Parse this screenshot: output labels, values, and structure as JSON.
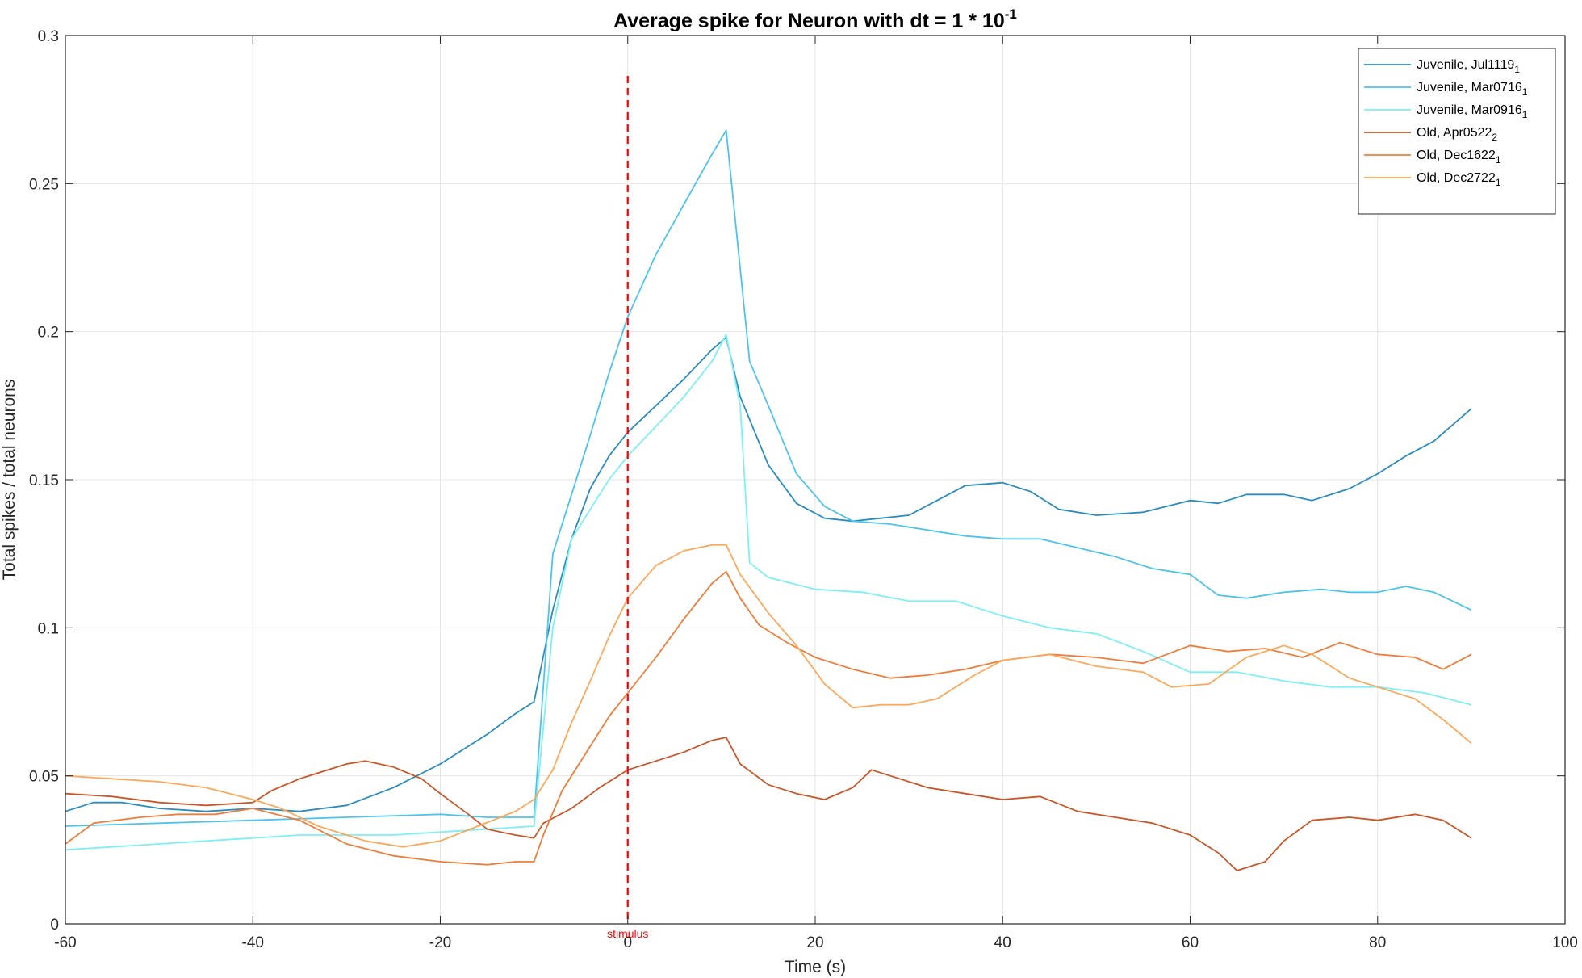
{
  "chart_data": {
    "type": "line",
    "title": "Average spike for Neuron with dt = 1 * 10",
    "title_superscript": "-1",
    "xlabel": "Time (s)",
    "ylabel": "Total spikes / total neurons",
    "xlim": [
      -60,
      100
    ],
    "ylim": [
      0,
      0.3
    ],
    "xticks": [
      -60,
      -40,
      -20,
      0,
      20,
      40,
      60,
      80,
      100
    ],
    "xtick_labels": [
      "-60",
      "-40",
      "-20",
      "0",
      "20",
      "40",
      "60",
      "80",
      "100"
    ],
    "yticks": [
      0,
      0.05,
      0.1,
      0.15,
      0.2,
      0.25,
      0.3
    ],
    "ytick_labels": [
      "0",
      "0.05",
      "0.1",
      "0.15",
      "0.2",
      "0.25",
      "0.3"
    ],
    "grid": true,
    "legend_position": "top-right",
    "stimulus": {
      "x": 0,
      "label": "stimulus",
      "color": "#ff0000"
    },
    "series": [
      {
        "name": "Juvenile, Jul1119",
        "subscript": "1",
        "color": "#2b8cbe",
        "points": [
          [
            -60,
            0.038
          ],
          [
            -57,
            0.041
          ],
          [
            -54,
            0.041
          ],
          [
            -50,
            0.039
          ],
          [
            -45,
            0.038
          ],
          [
            -40,
            0.039
          ],
          [
            -35,
            0.038
          ],
          [
            -30,
            0.04
          ],
          [
            -25,
            0.046
          ],
          [
            -20,
            0.054
          ],
          [
            -15,
            0.064
          ],
          [
            -12,
            0.071
          ],
          [
            -10,
            0.075
          ],
          [
            -8,
            0.106
          ],
          [
            -6,
            0.13
          ],
          [
            -4,
            0.147
          ],
          [
            -2,
            0.158
          ],
          [
            0,
            0.166
          ],
          [
            3,
            0.175
          ],
          [
            6,
            0.184
          ],
          [
            9,
            0.194
          ],
          [
            10.5,
            0.198
          ],
          [
            12,
            0.178
          ],
          [
            15,
            0.155
          ],
          [
            18,
            0.142
          ],
          [
            21,
            0.137
          ],
          [
            24,
            0.136
          ],
          [
            27,
            0.137
          ],
          [
            30,
            0.138
          ],
          [
            33,
            0.143
          ],
          [
            36,
            0.148
          ],
          [
            40,
            0.149
          ],
          [
            43,
            0.146
          ],
          [
            46,
            0.14
          ],
          [
            50,
            0.138
          ],
          [
            55,
            0.139
          ],
          [
            60,
            0.143
          ],
          [
            63,
            0.142
          ],
          [
            66,
            0.145
          ],
          [
            70,
            0.145
          ],
          [
            73,
            0.143
          ],
          [
            77,
            0.147
          ],
          [
            80,
            0.152
          ],
          [
            83,
            0.158
          ],
          [
            86,
            0.163
          ],
          [
            90,
            0.174
          ]
        ]
      },
      {
        "name": "Juvenile, Mar0716",
        "subscript": "1",
        "color": "#4fc3ec",
        "points": [
          [
            -60,
            0.033
          ],
          [
            -50,
            0.034
          ],
          [
            -40,
            0.035
          ],
          [
            -30,
            0.036
          ],
          [
            -20,
            0.037
          ],
          [
            -15,
            0.036
          ],
          [
            -10,
            0.036
          ],
          [
            -8,
            0.125
          ],
          [
            -6,
            0.145
          ],
          [
            -4,
            0.165
          ],
          [
            -2,
            0.186
          ],
          [
            0,
            0.205
          ],
          [
            3,
            0.226
          ],
          [
            6,
            0.243
          ],
          [
            9,
            0.26
          ],
          [
            10.5,
            0.268
          ],
          [
            13,
            0.19
          ],
          [
            15,
            0.175
          ],
          [
            18,
            0.152
          ],
          [
            21,
            0.141
          ],
          [
            24,
            0.136
          ],
          [
            28,
            0.135
          ],
          [
            32,
            0.133
          ],
          [
            36,
            0.131
          ],
          [
            40,
            0.13
          ],
          [
            44,
            0.13
          ],
          [
            48,
            0.127
          ],
          [
            52,
            0.124
          ],
          [
            56,
            0.12
          ],
          [
            60,
            0.118
          ],
          [
            63,
            0.111
          ],
          [
            66,
            0.11
          ],
          [
            70,
            0.112
          ],
          [
            74,
            0.113
          ],
          [
            77,
            0.112
          ],
          [
            80,
            0.112
          ],
          [
            83,
            0.114
          ],
          [
            86,
            0.112
          ],
          [
            90,
            0.106
          ]
        ]
      },
      {
        "name": "Juvenile, Mar0916",
        "subscript": "1",
        "color": "#7eeff2",
        "points": [
          [
            -60,
            0.025
          ],
          [
            -55,
            0.026
          ],
          [
            -50,
            0.027
          ],
          [
            -45,
            0.028
          ],
          [
            -40,
            0.029
          ],
          [
            -35,
            0.03
          ],
          [
            -30,
            0.03
          ],
          [
            -25,
            0.03
          ],
          [
            -20,
            0.031
          ],
          [
            -15,
            0.032
          ],
          [
            -10,
            0.033
          ],
          [
            -8,
            0.1
          ],
          [
            -6,
            0.13
          ],
          [
            -4,
            0.14
          ],
          [
            -2,
            0.15
          ],
          [
            0,
            0.158
          ],
          [
            3,
            0.168
          ],
          [
            6,
            0.178
          ],
          [
            9,
            0.19
          ],
          [
            10.5,
            0.199
          ],
          [
            12,
            0.175
          ],
          [
            13,
            0.122
          ],
          [
            15,
            0.117
          ],
          [
            20,
            0.113
          ],
          [
            25,
            0.112
          ],
          [
            30,
            0.109
          ],
          [
            35,
            0.109
          ],
          [
            40,
            0.104
          ],
          [
            45,
            0.1
          ],
          [
            50,
            0.098
          ],
          [
            55,
            0.092
          ],
          [
            60,
            0.085
          ],
          [
            65,
            0.085
          ],
          [
            70,
            0.082
          ],
          [
            75,
            0.08
          ],
          [
            80,
            0.08
          ],
          [
            85,
            0.078
          ],
          [
            90,
            0.074
          ]
        ]
      },
      {
        "name": "Old, Apr0522",
        "subscript": "2",
        "color": "#c8572a",
        "points": [
          [
            -60,
            0.044
          ],
          [
            -55,
            0.043
          ],
          [
            -50,
            0.041
          ],
          [
            -45,
            0.04
          ],
          [
            -40,
            0.041
          ],
          [
            -38,
            0.045
          ],
          [
            -35,
            0.049
          ],
          [
            -30,
            0.054
          ],
          [
            -28,
            0.055
          ],
          [
            -25,
            0.053
          ],
          [
            -22,
            0.049
          ],
          [
            -20,
            0.044
          ],
          [
            -17,
            0.037
          ],
          [
            -15,
            0.032
          ],
          [
            -12,
            0.03
          ],
          [
            -10,
            0.029
          ],
          [
            -9,
            0.034
          ],
          [
            -6,
            0.039
          ],
          [
            -3,
            0.046
          ],
          [
            0,
            0.052
          ],
          [
            3,
            0.055
          ],
          [
            6,
            0.058
          ],
          [
            9,
            0.062
          ],
          [
            10.5,
            0.063
          ],
          [
            12,
            0.054
          ],
          [
            15,
            0.047
          ],
          [
            18,
            0.044
          ],
          [
            21,
            0.042
          ],
          [
            24,
            0.046
          ],
          [
            26,
            0.052
          ],
          [
            29,
            0.049
          ],
          [
            32,
            0.046
          ],
          [
            36,
            0.044
          ],
          [
            40,
            0.042
          ],
          [
            44,
            0.043
          ],
          [
            48,
            0.038
          ],
          [
            52,
            0.036
          ],
          [
            56,
            0.034
          ],
          [
            60,
            0.03
          ],
          [
            63,
            0.024
          ],
          [
            65,
            0.018
          ],
          [
            68,
            0.021
          ],
          [
            70,
            0.028
          ],
          [
            73,
            0.035
          ],
          [
            77,
            0.036
          ],
          [
            80,
            0.035
          ],
          [
            84,
            0.037
          ],
          [
            87,
            0.035
          ],
          [
            90,
            0.029
          ]
        ]
      },
      {
        "name": "Old, Dec1622",
        "subscript": "1",
        "color": "#ee7d3a",
        "points": [
          [
            -60,
            0.027
          ],
          [
            -57,
            0.034
          ],
          [
            -52,
            0.036
          ],
          [
            -48,
            0.037
          ],
          [
            -44,
            0.037
          ],
          [
            -40,
            0.039
          ],
          [
            -35,
            0.035
          ],
          [
            -30,
            0.027
          ],
          [
            -25,
            0.023
          ],
          [
            -20,
            0.021
          ],
          [
            -15,
            0.02
          ],
          [
            -12,
            0.021
          ],
          [
            -10,
            0.021
          ],
          [
            -9,
            0.03
          ],
          [
            -7,
            0.045
          ],
          [
            -4,
            0.06
          ],
          [
            -2,
            0.07
          ],
          [
            0,
            0.078
          ],
          [
            3,
            0.09
          ],
          [
            6,
            0.103
          ],
          [
            9,
            0.115
          ],
          [
            10.5,
            0.119
          ],
          [
            12,
            0.11
          ],
          [
            14,
            0.101
          ],
          [
            17,
            0.095
          ],
          [
            20,
            0.09
          ],
          [
            24,
            0.086
          ],
          [
            28,
            0.083
          ],
          [
            32,
            0.084
          ],
          [
            36,
            0.086
          ],
          [
            40,
            0.089
          ],
          [
            45,
            0.091
          ],
          [
            50,
            0.09
          ],
          [
            55,
            0.088
          ],
          [
            60,
            0.094
          ],
          [
            64,
            0.092
          ],
          [
            68,
            0.093
          ],
          [
            72,
            0.09
          ],
          [
            76,
            0.095
          ],
          [
            80,
            0.091
          ],
          [
            84,
            0.09
          ],
          [
            87,
            0.086
          ],
          [
            90,
            0.091
          ]
        ]
      },
      {
        "name": "Old, Dec2722",
        "subscript": "1",
        "color": "#fba85a",
        "points": [
          [
            -60,
            0.05
          ],
          [
            -55,
            0.049
          ],
          [
            -50,
            0.048
          ],
          [
            -45,
            0.046
          ],
          [
            -40,
            0.042
          ],
          [
            -37,
            0.039
          ],
          [
            -33,
            0.033
          ],
          [
            -28,
            0.028
          ],
          [
            -24,
            0.026
          ],
          [
            -20,
            0.028
          ],
          [
            -16,
            0.033
          ],
          [
            -12,
            0.038
          ],
          [
            -10,
            0.042
          ],
          [
            -8,
            0.052
          ],
          [
            -6,
            0.068
          ],
          [
            -4,
            0.082
          ],
          [
            -2,
            0.097
          ],
          [
            0,
            0.11
          ],
          [
            3,
            0.121
          ],
          [
            6,
            0.126
          ],
          [
            9,
            0.128
          ],
          [
            10.5,
            0.128
          ],
          [
            12,
            0.118
          ],
          [
            15,
            0.105
          ],
          [
            18,
            0.094
          ],
          [
            21,
            0.081
          ],
          [
            24,
            0.073
          ],
          [
            27,
            0.074
          ],
          [
            30,
            0.074
          ],
          [
            33,
            0.076
          ],
          [
            37,
            0.084
          ],
          [
            40,
            0.089
          ],
          [
            45,
            0.091
          ],
          [
            50,
            0.087
          ],
          [
            55,
            0.085
          ],
          [
            58,
            0.08
          ],
          [
            62,
            0.081
          ],
          [
            66,
            0.09
          ],
          [
            70,
            0.094
          ],
          [
            73,
            0.091
          ],
          [
            77,
            0.083
          ],
          [
            80,
            0.08
          ],
          [
            84,
            0.076
          ],
          [
            87,
            0.069
          ],
          [
            90,
            0.061
          ]
        ]
      }
    ]
  }
}
